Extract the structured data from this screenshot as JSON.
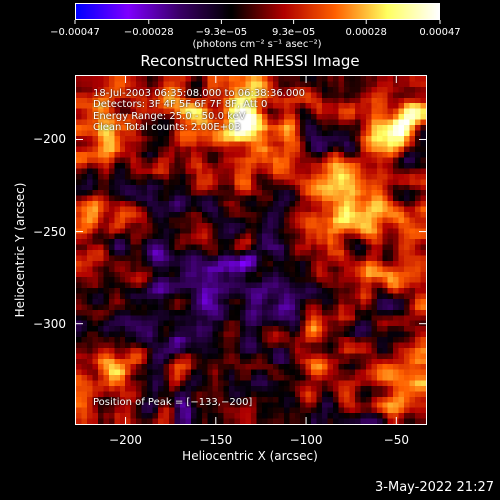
{
  "chart_data": {
    "type": "heatmap",
    "title": "Reconstructed RHESSI Image",
    "xlabel": "Heliocentric X (arcsec)",
    "ylabel": "Heliocentric Y (arcsec)",
    "xlim": [
      -228,
      -33
    ],
    "ylim": [
      -355,
      -165
    ],
    "x_ticks": [
      "−200",
      "−150",
      "−100",
      "−50"
    ],
    "x_tick_values": [
      -200,
      -150,
      -100,
      -50
    ],
    "y_ticks": [
      "−200",
      "−250",
      "−300"
    ],
    "y_tick_values": [
      -200,
      -250,
      -300
    ],
    "colorbar": {
      "ticks": [
        "−0.00047",
        "−0.00028",
        "−9.3e−05",
        "9.3e−05",
        "0.00028",
        "0.00047"
      ],
      "tick_values": [
        -0.00047,
        -0.00028,
        -9.3e-05,
        9.3e-05,
        0.00028,
        0.00047
      ],
      "range": [
        -0.00047,
        0.00047
      ],
      "unit": "(photons cm⁻² s⁻¹ asec⁻²)",
      "colors": [
        "#0000ff",
        "#7f00ff",
        "#3a0066",
        "#000000",
        "#b00000",
        "#ff6000",
        "#ffff60",
        "#ffffff"
      ]
    },
    "annotations": {
      "time_range": "18-Jul-2003 06:35:08.000 to 06:38:36.000",
      "detectors": "Detectors: 3F 4F 5F 6F 7F 8F, Att 0",
      "energy": "Energy Range: 25.0 - 50.0 keV",
      "method": "Clean    Total counts: 2.00E+03",
      "peak": "Position of Peak = [−133,−200]"
    },
    "peak_position": [
      -133,
      -200
    ]
  },
  "footer": {
    "timestamp": "3-May-2022 21:27"
  }
}
